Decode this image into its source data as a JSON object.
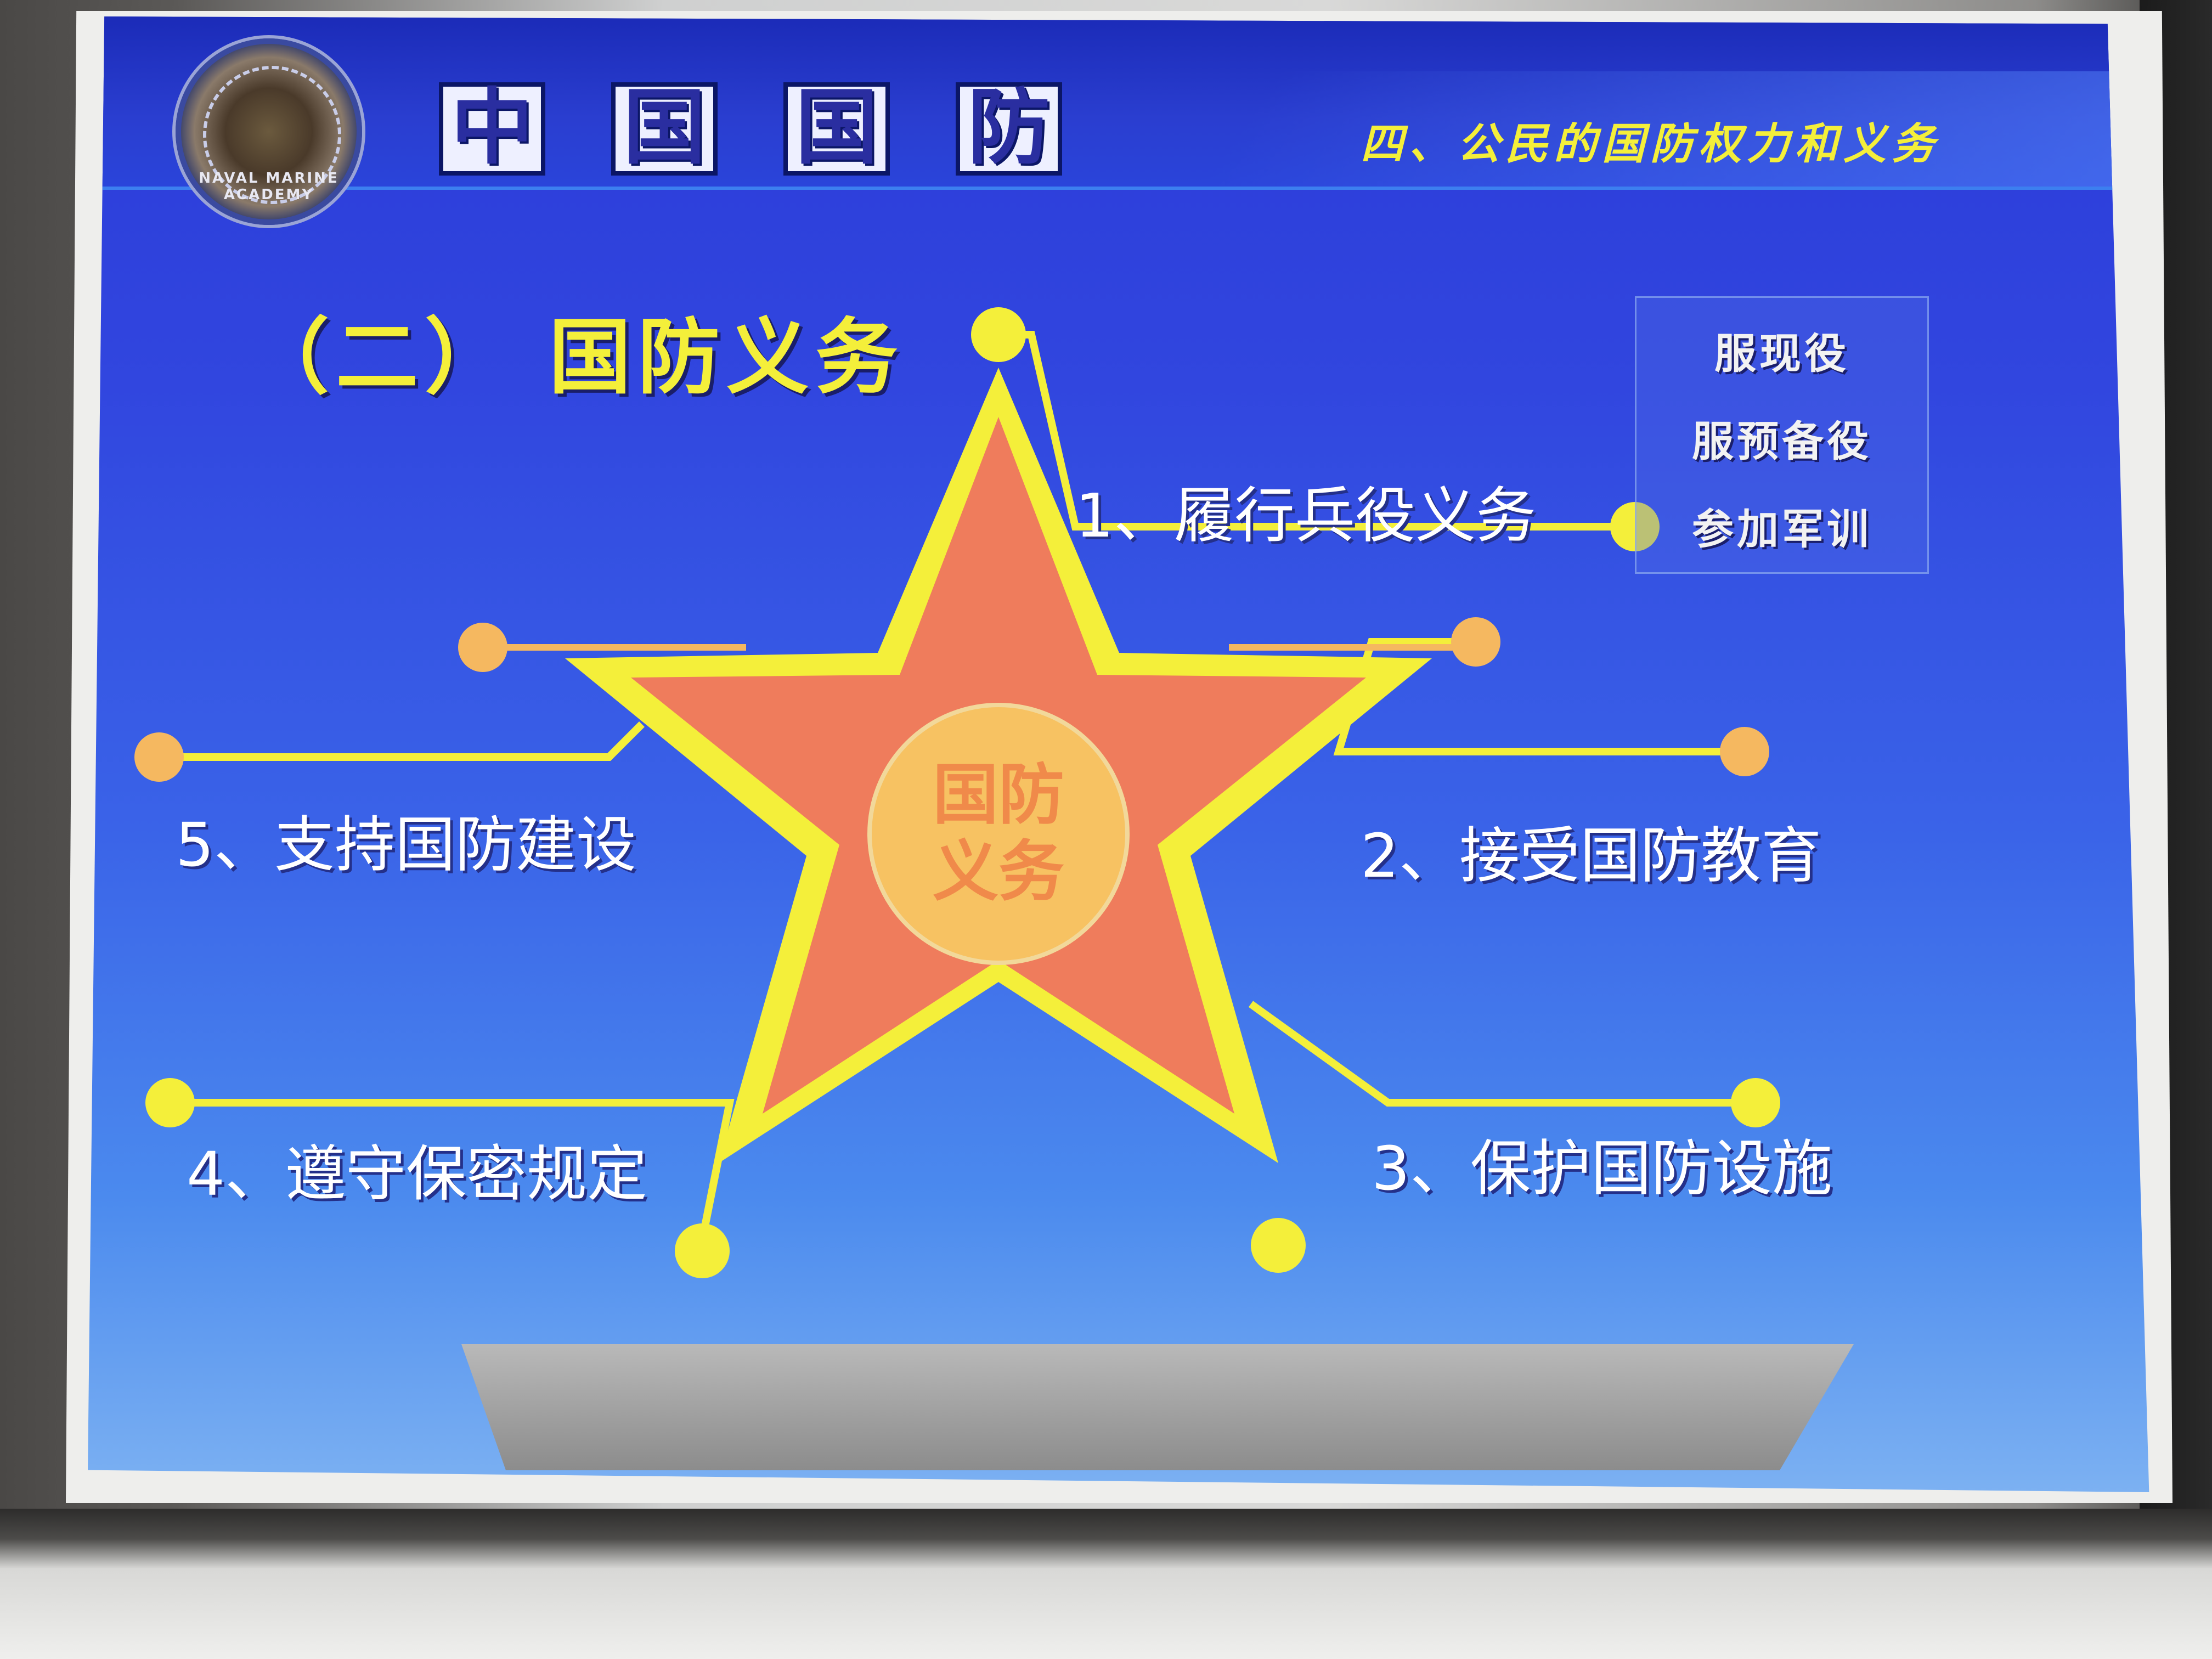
{
  "header": {
    "title_chars": [
      "中",
      "国",
      "国",
      "防"
    ],
    "section": "四、公民的国防权力和义务"
  },
  "logo": {
    "text": "NAVAL MARINE ACADEMY"
  },
  "slide": {
    "subtitle": "（二） 国防义务",
    "center_line1": "国防",
    "center_line2": "义务",
    "duties": [
      "1、履行兵役义务",
      "2、接受国防教育",
      "3、保护国防设施",
      "4、遵守保密规定",
      "5、支持国防建设"
    ],
    "military_service_items": [
      "服现役",
      "服预备役",
      "参加军训"
    ]
  },
  "colors": {
    "slide_blue": "#3146df",
    "title_yellow": "#f4ef3a",
    "star_red": "#ef7c5c",
    "star_outline": "#f4ef3a",
    "center_circle": "#f7c262"
  }
}
